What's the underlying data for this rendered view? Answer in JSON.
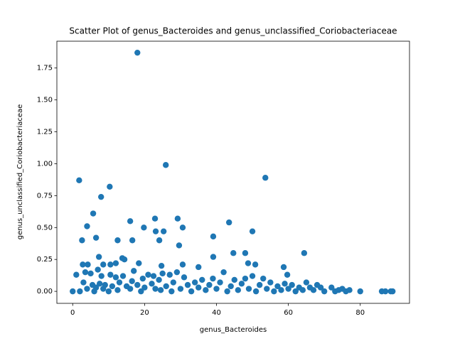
{
  "chart_data": {
    "type": "scatter",
    "title": "Scatter Plot of genus_Bacteroides and genus_unclassified_Coriobacteriaceae",
    "x_label": "genus_Bacteroides",
    "y_label": "genus_unclassified_Coriobacteriaceae",
    "color": "#1f77b4",
    "xlim": [
      -4.4,
      93.7
    ],
    "ylim": [
      -0.094,
      1.96
    ],
    "xticks": [
      0,
      20,
      40,
      60,
      80
    ],
    "yticks": [
      {
        "value": 0,
        "label": "0.00"
      },
      {
        "value": 0.25,
        "label": "0.25"
      },
      {
        "value": 0.5,
        "label": "0.50"
      },
      {
        "value": 0.75,
        "label": "0.75"
      },
      {
        "value": 1,
        "label": "1.00"
      },
      {
        "value": 1.25,
        "label": "1.25"
      },
      {
        "value": 1.5,
        "label": "1.50"
      },
      {
        "value": 1.75,
        "label": "1.75"
      }
    ],
    "x": [
      18,
      25.9,
      53.6,
      1.8,
      10.3,
      7.9,
      5.7,
      29.2,
      22.9,
      16,
      43.5,
      4,
      19.8,
      30.6,
      23.1,
      25.3,
      50,
      39.1,
      6.5,
      12.5,
      2.6,
      16.6,
      24.1,
      29.6,
      44.7,
      48,
      64.4,
      39.1,
      7.3,
      13.8,
      14.4,
      2.8,
      4.2,
      8.5,
      18.4,
      24.7,
      30.6,
      50.8,
      58.7,
      48.8,
      59.7,
      10.5,
      35,
      12,
      0,
      1,
      2,
      3,
      3.5,
      4,
      5,
      5.5,
      6,
      6.5,
      7,
      7.5,
      8,
      8.5,
      9,
      10,
      10.5,
      11,
      12,
      12.5,
      13,
      14,
      15,
      16,
      16.5,
      17,
      18,
      19,
      19.5,
      20,
      21,
      22,
      22.5,
      23,
      24,
      24.5,
      25,
      26,
      27,
      27.5,
      28,
      29,
      30,
      31,
      32,
      33,
      34,
      35,
      36,
      37,
      38,
      39,
      40,
      41,
      42,
      43,
      44,
      45,
      46,
      47,
      48,
      49,
      50,
      51,
      52,
      53,
      54,
      55,
      56,
      57,
      58,
      59,
      60,
      61,
      62,
      63,
      64,
      65,
      66,
      67,
      68,
      69,
      70,
      72,
      73,
      74,
      75,
      76,
      77,
      80,
      86,
      87,
      89,
      88.5
    ],
    "y": [
      1.87,
      0.99,
      0.89,
      0.87,
      0.82,
      0.74,
      0.61,
      0.57,
      0.57,
      0.55,
      0.54,
      0.51,
      0.5,
      0.5,
      0.47,
      0.47,
      0.47,
      0.43,
      0.42,
      0.4,
      0.4,
      0.4,
      0.4,
      0.36,
      0.3,
      0.3,
      0.3,
      0.27,
      0.27,
      0.26,
      0.25,
      0.21,
      0.21,
      0.21,
      0.22,
      0.2,
      0.21,
      0.21,
      0.19,
      0.22,
      0.13,
      0.21,
      0.19,
      0.22,
      0,
      0.13,
      0,
      0.07,
      0.15,
      0.02,
      0.14,
      0.05,
      0,
      0.03,
      0.17,
      0.06,
      0.12,
      0.02,
      0.05,
      0,
      0.13,
      0.04,
      0.11,
      0.01,
      0.07,
      0.12,
      0.04,
      0.02,
      0.08,
      0.16,
      0.05,
      0,
      0.1,
      0.03,
      0.13,
      0.06,
      0.12,
      0.02,
      0.09,
      0.01,
      0.14,
      0.04,
      0.13,
      0,
      0.07,
      0.15,
      0.02,
      0.11,
      0.05,
      0,
      0.07,
      0.03,
      0.09,
      0.01,
      0.05,
      0.1,
      0.02,
      0.07,
      0.15,
      0,
      0.04,
      0.09,
      0.01,
      0.06,
      0.1,
      0.02,
      0.12,
      0,
      0.05,
      0.1,
      0.02,
      0.07,
      0,
      0.04,
      0.01,
      0.06,
      0.02,
      0.05,
      0,
      0.03,
      0.01,
      0.07,
      0.03,
      0.01,
      0.05,
      0.03,
      0,
      0.03,
      0,
      0.01,
      0.02,
      0,
      0.01,
      0,
      0,
      0,
      0,
      0
    ]
  }
}
